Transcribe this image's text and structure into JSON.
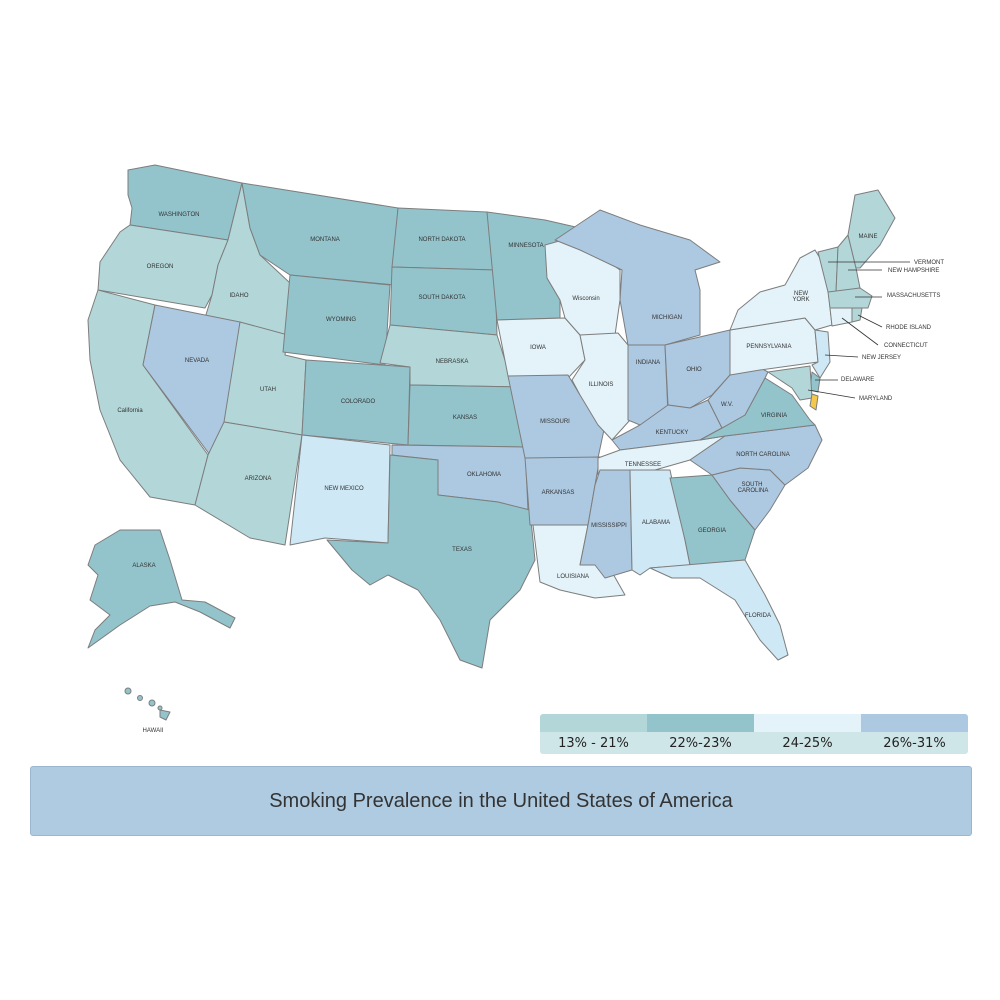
{
  "title": "Smoking Prevalence in the United States of America",
  "colors": {
    "c1": "#b3d7d8",
    "c2": "#93c4cc",
    "c3": "#e3f3f9",
    "c4": "#adc9e1",
    "c5": "#cfe8f5",
    "highlight": "#f2c94c"
  },
  "legend": [
    {
      "label": "13% - 21%",
      "color": "#b3d7d8"
    },
    {
      "label": "22%-23%",
      "color": "#93c4cc"
    },
    {
      "label": "24-25%",
      "color": "#e3f3f9"
    },
    {
      "label": "26%-31%",
      "color": "#adc9e1"
    }
  ],
  "states": [
    {
      "label": "WASHINGTON",
      "class": "c2"
    },
    {
      "label": "OREGON",
      "class": "c1"
    },
    {
      "label": "California",
      "class": "c1"
    },
    {
      "label": "IDAHO",
      "class": "c1"
    },
    {
      "label": "NEVADA",
      "class": "c4"
    },
    {
      "label": "UTAH",
      "class": "c1"
    },
    {
      "label": "ARIZONA",
      "class": "c1"
    },
    {
      "label": "MONTANA",
      "class": "c2"
    },
    {
      "label": "WYOMING",
      "class": "c2"
    },
    {
      "label": "COLORADO",
      "class": "c2"
    },
    {
      "label": "NEW MEXICO",
      "class": "c5"
    },
    {
      "label": "NORTH DAKOTA",
      "class": "c2"
    },
    {
      "label": "SOUTH DAKOTA",
      "class": "c2"
    },
    {
      "label": "NEBRASKA",
      "class": "c1"
    },
    {
      "label": "KANSAS",
      "class": "c2"
    },
    {
      "label": "OKLAHOMA",
      "class": "c4"
    },
    {
      "label": "TEXAS",
      "class": "c2"
    },
    {
      "label": "MINNESOTA",
      "class": "c2"
    },
    {
      "label": "IOWA",
      "class": "c3"
    },
    {
      "label": "MISSOURI",
      "class": "c4"
    },
    {
      "label": "ARKANSAS",
      "class": "c4"
    },
    {
      "label": "LOUISIANA",
      "class": "c3"
    },
    {
      "label": "Wisconsin",
      "class": "c3"
    },
    {
      "label": "ILLINOIS",
      "class": "c3"
    },
    {
      "label": "MICHIGAN",
      "class": "c4"
    },
    {
      "label": "INDIANA",
      "class": "c4"
    },
    {
      "label": "OHIO",
      "class": "c4"
    },
    {
      "label": "KENTUCKY",
      "class": "c4"
    },
    {
      "label": "TENNESSEE",
      "class": "c3"
    },
    {
      "label": "MISSISSIPPI",
      "class": "c4"
    },
    {
      "label": "ALABAMA",
      "class": "c5"
    },
    {
      "label": "GEORGIA",
      "class": "c2"
    },
    {
      "label": "FLORIDA",
      "class": "c5"
    },
    {
      "label": "SOUTH CAROLINA",
      "class": "c4"
    },
    {
      "label": "NORTH CAROLINA",
      "class": "c4"
    },
    {
      "label": "VIRGINIA",
      "class": "c2"
    },
    {
      "label": "W.V.",
      "class": "c4"
    },
    {
      "label": "PENNSYLVANIA",
      "class": "c3"
    },
    {
      "label": "NEW YORK",
      "class": "c3"
    },
    {
      "label": "MAINE",
      "class": "c5"
    },
    {
      "label": "VERMONT",
      "class": "c2"
    },
    {
      "label": "NEW HAMPSHIRE",
      "class": "c1"
    },
    {
      "label": "MASSACHUSETTS",
      "class": "c1"
    },
    {
      "label": "RHODE ISLAND",
      "class": "c1"
    },
    {
      "label": "CONNECTICUT",
      "class": "c1"
    },
    {
      "label": "NEW JERSEY",
      "class": "c1"
    },
    {
      "label": "DELAWARE",
      "class": "c3"
    },
    {
      "label": "MARYLAND",
      "class": "c1"
    },
    {
      "label": "ALASKA",
      "class": "c2"
    },
    {
      "label": "HAWAII",
      "class": "c2"
    }
  ]
}
